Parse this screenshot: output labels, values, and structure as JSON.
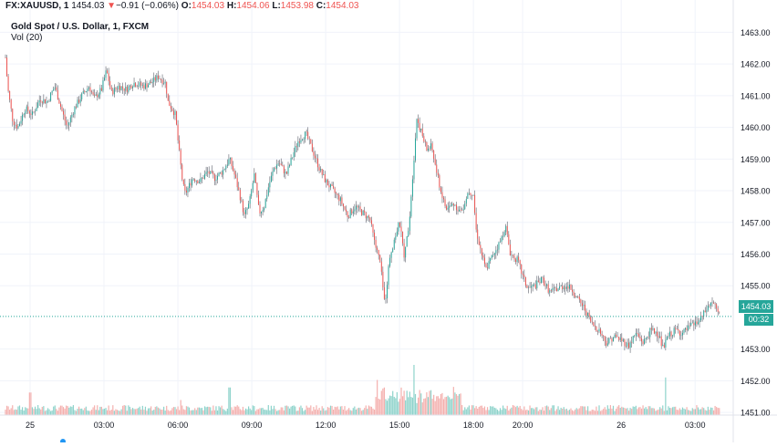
{
  "header": {
    "symbol": "FX:XAUUSD, 1",
    "last": "1454.03",
    "change_arrow": "▼",
    "change": "−0.91 (−0.06%)",
    "o_label": "O:",
    "o": "1454.03",
    "h_label": "H:",
    "h": "1454.06",
    "l_label": "L:",
    "l": "1453.98",
    "c_label": "C:",
    "c": "1454.03"
  },
  "subtitle": "Gold Spot / U.S. Dollar, 1, FXCM",
  "volume_label": "Vol (20)",
  "price_tag": "1454.03",
  "time_tag": "00:32",
  "colors": {
    "up": "#26a69a",
    "down": "#ef5350",
    "up_volume": "#8ed3cb",
    "down_volume": "#f4b0ae",
    "wick": "#5d606b",
    "grid": "#f0f3fa"
  },
  "chart_data": {
    "type": "candlestick",
    "y_axis": {
      "ticks": [
        1463.0,
        1462.0,
        1461.0,
        1460.0,
        1459.0,
        1458.0,
        1457.0,
        1456.0,
        1455.0,
        1453.0,
        1452.0,
        1451.0
      ],
      "range": [
        1450.6,
        1463.3
      ],
      "current_price_line": 1454.03
    },
    "x_axis": {
      "labels": [
        "25",
        "03:00",
        "06:00",
        "09:00",
        "12:00",
        "15:00",
        "18:00",
        "20:00",
        "26",
        "03:00"
      ],
      "label_hours": [
        0,
        3,
        6,
        9,
        12,
        15,
        18,
        20,
        24,
        27
      ],
      "range_hours": [
        -1.0,
        28.4
      ]
    },
    "price_path": [
      [
        -1.0,
        1462.2
      ],
      [
        -0.9,
        1461.2
      ],
      [
        -0.7,
        1460.2
      ],
      [
        -0.5,
        1460.0
      ],
      [
        -0.2,
        1460.6
      ],
      [
        0.1,
        1460.4
      ],
      [
        0.4,
        1460.9
      ],
      [
        0.7,
        1460.8
      ],
      [
        1.0,
        1461.3
      ],
      [
        1.3,
        1460.5
      ],
      [
        1.5,
        1460.0
      ],
      [
        1.8,
        1460.6
      ],
      [
        2.1,
        1461.0
      ],
      [
        2.4,
        1461.3
      ],
      [
        2.6,
        1460.9
      ],
      [
        2.9,
        1461.2
      ],
      [
        3.1,
        1461.8
      ],
      [
        3.3,
        1461.1
      ],
      [
        3.6,
        1461.3
      ],
      [
        3.9,
        1461.2
      ],
      [
        4.2,
        1461.4
      ],
      [
        4.6,
        1461.3
      ],
      [
        4.9,
        1461.4
      ],
      [
        5.2,
        1461.6
      ],
      [
        5.5,
        1461.4
      ],
      [
        5.6,
        1460.8
      ],
      [
        5.9,
        1460.4
      ],
      [
        6.0,
        1459.6
      ],
      [
        6.2,
        1458.2
      ],
      [
        6.3,
        1457.9
      ],
      [
        6.6,
        1458.4
      ],
      [
        6.9,
        1458.3
      ],
      [
        7.2,
        1458.6
      ],
      [
        7.5,
        1458.4
      ],
      [
        7.8,
        1458.6
      ],
      [
        8.1,
        1459.0
      ],
      [
        8.3,
        1458.5
      ],
      [
        8.5,
        1457.9
      ],
      [
        8.7,
        1457.2
      ],
      [
        8.9,
        1457.6
      ],
      [
        9.1,
        1458.5
      ],
      [
        9.3,
        1457.3
      ],
      [
        9.5,
        1457.5
      ],
      [
        9.7,
        1458.2
      ],
      [
        9.9,
        1458.7
      ],
      [
        10.1,
        1458.9
      ],
      [
        10.4,
        1458.5
      ],
      [
        10.7,
        1459.2
      ],
      [
        10.9,
        1459.6
      ],
      [
        11.2,
        1459.8
      ],
      [
        11.5,
        1459.2
      ],
      [
        11.8,
        1458.6
      ],
      [
        12.0,
        1458.3
      ],
      [
        12.3,
        1458.0
      ],
      [
        12.6,
        1457.7
      ],
      [
        12.9,
        1457.2
      ],
      [
        13.2,
        1457.5
      ],
      [
        13.5,
        1457.3
      ],
      [
        13.8,
        1457.1
      ],
      [
        14.0,
        1456.3
      ],
      [
        14.2,
        1455.8
      ],
      [
        14.4,
        1454.4
      ],
      [
        14.6,
        1455.9
      ],
      [
        14.8,
        1456.5
      ],
      [
        15.0,
        1457.0
      ],
      [
        15.2,
        1455.9
      ],
      [
        15.4,
        1457.1
      ],
      [
        15.6,
        1459.2
      ],
      [
        15.7,
        1460.3
      ],
      [
        15.9,
        1459.8
      ],
      [
        16.1,
        1459.3
      ],
      [
        16.3,
        1459.4
      ],
      [
        16.5,
        1458.6
      ],
      [
        16.7,
        1457.9
      ],
      [
        16.9,
        1457.4
      ],
      [
        17.2,
        1457.6
      ],
      [
        17.5,
        1457.3
      ],
      [
        17.8,
        1458.0
      ],
      [
        18.0,
        1457.9
      ],
      [
        18.1,
        1456.8
      ],
      [
        18.3,
        1456.1
      ],
      [
        18.5,
        1455.5
      ],
      [
        18.8,
        1456.0
      ],
      [
        19.1,
        1456.4
      ],
      [
        19.3,
        1456.9
      ],
      [
        19.5,
        1456.0
      ],
      [
        19.8,
        1455.8
      ],
      [
        20.0,
        1455.3
      ],
      [
        20.2,
        1454.9
      ],
      [
        20.5,
        1455.0
      ],
      [
        20.8,
        1455.2
      ],
      [
        21.1,
        1454.8
      ],
      [
        21.4,
        1454.9
      ],
      [
        21.7,
        1455.0
      ],
      [
        22.0,
        1454.9
      ],
      [
        22.2,
        1454.6
      ],
      [
        22.5,
        1454.3
      ],
      [
        22.8,
        1453.8
      ],
      [
        23.1,
        1453.6
      ],
      [
        23.4,
        1453.2
      ],
      [
        23.7,
        1453.4
      ],
      [
        24.0,
        1453.3
      ],
      [
        24.3,
        1453.1
      ],
      [
        24.6,
        1453.5
      ],
      [
        24.9,
        1453.2
      ],
      [
        25.2,
        1453.6
      ],
      [
        25.5,
        1453.5
      ],
      [
        25.7,
        1453.0
      ],
      [
        25.9,
        1453.4
      ],
      [
        26.2,
        1453.6
      ],
      [
        26.5,
        1453.5
      ],
      [
        26.8,
        1453.7
      ],
      [
        27.2,
        1453.9
      ],
      [
        27.5,
        1454.3
      ],
      [
        27.7,
        1454.5
      ],
      [
        28.0,
        1454.03
      ]
    ],
    "volume_spikes": [
      [
        0.0,
        0.45
      ],
      [
        6.1,
        0.3
      ],
      [
        8.1,
        0.55
      ],
      [
        14.1,
        0.7
      ],
      [
        14.4,
        0.55
      ],
      [
        15.6,
        1.0
      ],
      [
        15.8,
        0.5
      ],
      [
        25.8,
        0.75
      ]
    ]
  }
}
